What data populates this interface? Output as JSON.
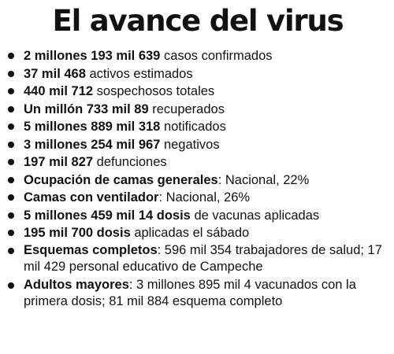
{
  "title": "El avance del virus",
  "items": [
    {
      "bold": "2 millones 193 mil 639",
      "text": " casos confirmados"
    },
    {
      "bold": "37 mil 468",
      "text": " activos estimados"
    },
    {
      "bold": "440 mil 712",
      "text": " sospechosos totales"
    },
    {
      "bold": "Un millón 733 mil 89",
      "text": " recuperados"
    },
    {
      "bold": "5 millones 889 mil 318",
      "text": " notificados"
    },
    {
      "bold": "3 millones 254 mil 967",
      "text": " negativos"
    },
    {
      "bold": "197 mil 827",
      "text": " defunciones"
    },
    {
      "bold": "Ocupación de camas generales",
      "text": ": Nacional, 22%"
    },
    {
      "bold": "Camas con ventilador",
      "text": ": Nacional, 26%"
    },
    {
      "bold": "5 millones 459 mil 14 dosis",
      "text": " de vacunas aplicadas"
    },
    {
      "bold": "195 mil 700 dosis",
      "text": " aplicadas el sábado"
    },
    {
      "bold": "Esquemas completos",
      "text": ": 596 mil 354 trabajadores de salud; 17 mil 429 personal educativo de Campeche"
    },
    {
      "bold": "Adultos mayores",
      "text": ": 3 millones 895 mil 4 vacunados con la primera dosis; 81 mil 884 esquema completo"
    }
  ]
}
